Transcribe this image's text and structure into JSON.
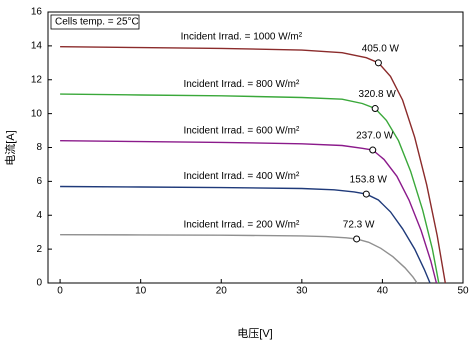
{
  "chart_data": {
    "type": "line",
    "annotation": "Cells temp. = 25°C",
    "xlabel": "电压[V]",
    "ylabel": "电流[A]",
    "xlim": [
      -1.5,
      50
    ],
    "ylim": [
      0,
      16
    ],
    "xticks": [
      0,
      10,
      20,
      30,
      40,
      50
    ],
    "yticks": [
      0,
      2,
      4,
      6,
      8,
      10,
      12,
      14,
      16
    ],
    "grid": false,
    "series": [
      {
        "name": "Incident Irrad. = 1000 W/m²",
        "color": "#8b2b2b",
        "x": [
          0,
          10,
          20,
          30,
          35,
          38,
          39.5,
          41,
          42.5,
          44,
          45.5,
          46.8,
          47.8
        ],
        "values": [
          13.95,
          13.9,
          13.85,
          13.75,
          13.6,
          13.3,
          13.0,
          12.2,
          10.8,
          8.6,
          5.8,
          2.8,
          0
        ],
        "mpp": {
          "v": 39.5,
          "i": 13.0
        },
        "mpp_label": "405.0 W"
      },
      {
        "name": "Incident Irrad. = 800 W/m²",
        "color": "#3aa83a",
        "x": [
          0,
          10,
          20,
          30,
          35,
          37.5,
          39.1,
          40.5,
          42,
          43.5,
          45,
          46.2,
          47.0
        ],
        "values": [
          11.15,
          11.1,
          11.05,
          10.95,
          10.85,
          10.6,
          10.3,
          9.6,
          8.4,
          6.6,
          4.3,
          2.0,
          0
        ],
        "mpp": {
          "v": 39.1,
          "i": 10.3
        },
        "mpp_label": "320.8 W"
      },
      {
        "name": "Incident Irrad. = 600 W/m²",
        "color": "#8b1a8b",
        "x": [
          0,
          10,
          20,
          30,
          35,
          37.5,
          38.8,
          40.2,
          41.8,
          43.3,
          44.8,
          46.0,
          46.7
        ],
        "values": [
          8.4,
          8.35,
          8.3,
          8.22,
          8.12,
          7.95,
          7.85,
          7.3,
          6.3,
          4.9,
          3.1,
          1.3,
          0
        ],
        "mpp": {
          "v": 38.8,
          "i": 7.85
        },
        "mpp_label": "237.0 W"
      },
      {
        "name": "Incident Irrad. = 400 W/m²",
        "color": "#1f3a7a",
        "x": [
          0,
          10,
          20,
          30,
          34,
          36.5,
          38,
          39.5,
          41,
          42.5,
          44,
          45.2,
          45.9
        ],
        "values": [
          5.7,
          5.67,
          5.63,
          5.58,
          5.5,
          5.38,
          5.25,
          4.9,
          4.2,
          3.2,
          2.0,
          0.8,
          0
        ],
        "mpp": {
          "v": 38,
          "i": 5.25
        },
        "mpp_label": "153.8 W"
      },
      {
        "name": "Incident Irrad. = 200 W/m²",
        "color": "#909090",
        "x": [
          0,
          10,
          20,
          30,
          33,
          35.5,
          36.8,
          38.3,
          39.8,
          41.3,
          42.8,
          43.8,
          44.3
        ],
        "values": [
          2.85,
          2.84,
          2.82,
          2.78,
          2.74,
          2.67,
          2.6,
          2.4,
          2.05,
          1.55,
          0.9,
          0.35,
          0
        ],
        "mpp": {
          "v": 36.8,
          "i": 2.6
        },
        "mpp_label": "72.3 W"
      }
    ]
  }
}
